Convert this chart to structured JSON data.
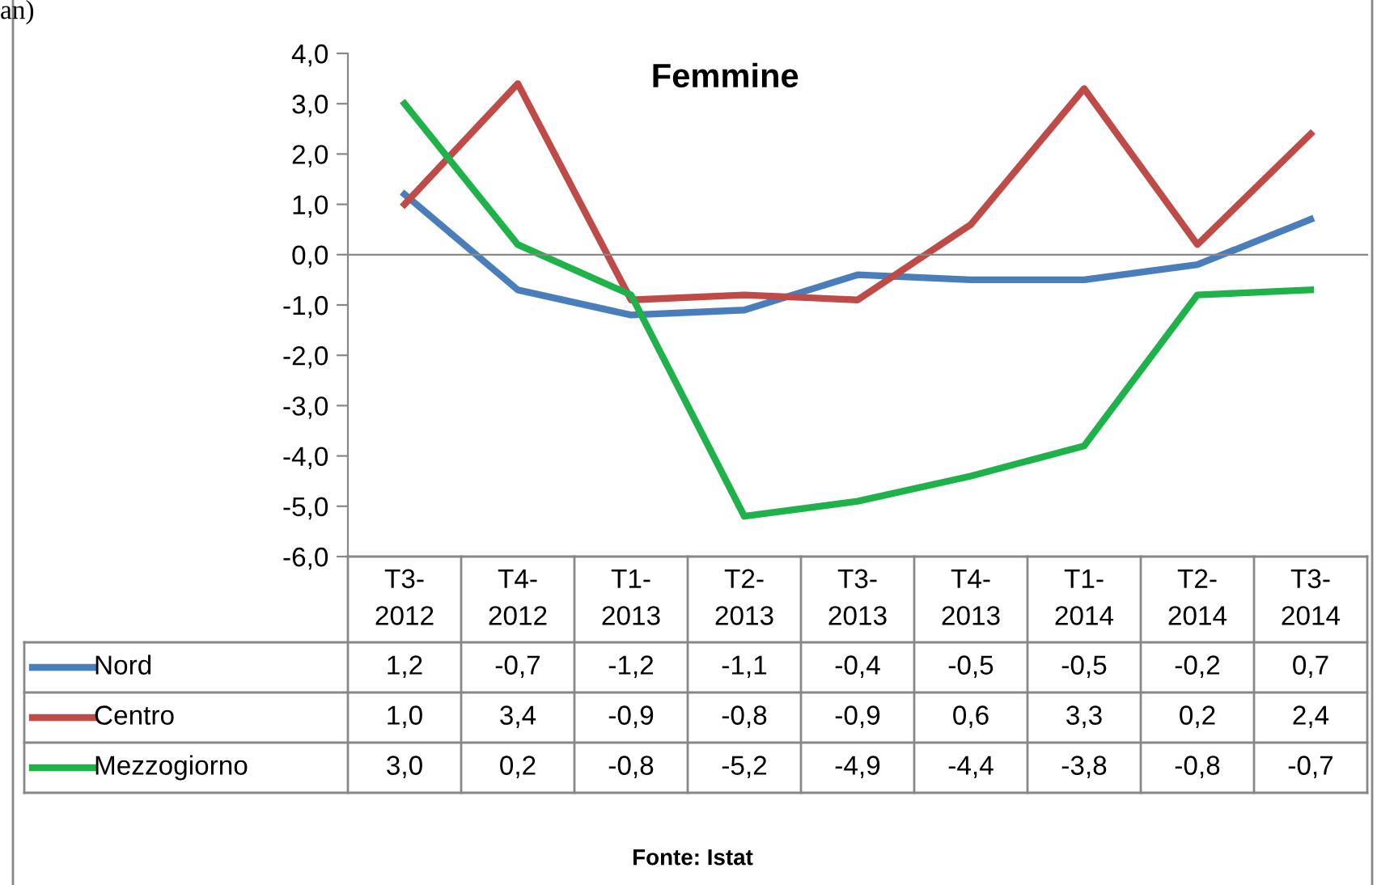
{
  "chart_data": {
    "type": "line",
    "title": "Femmine",
    "categories": [
      "T3-\n2012",
      "T4-\n2012",
      "T1-\n2013",
      "T2-\n2013",
      "T3-\n2013",
      "T4-\n2013",
      "T1-\n2014",
      "T2-\n2014",
      "T3-\n2014"
    ],
    "series": [
      {
        "name": "Nord",
        "color": "#4a7ebb",
        "values": [
          1.2,
          -0.7,
          -1.2,
          -1.1,
          -0.4,
          -0.5,
          -0.5,
          -0.2,
          0.7
        ],
        "value_labels": [
          "1,2",
          "-0,7",
          "-1,2",
          "-1,1",
          "-0,4",
          "-0,5",
          "-0,5",
          "-0,2",
          "0,7"
        ]
      },
      {
        "name": "Centro",
        "color": "#be4b48",
        "values": [
          1.0,
          3.4,
          -0.9,
          -0.8,
          -0.9,
          0.6,
          3.3,
          0.2,
          2.4
        ],
        "value_labels": [
          "1,0",
          "3,4",
          "-0,9",
          "-0,8",
          "-0,9",
          "0,6",
          "3,3",
          "0,2",
          "2,4"
        ]
      },
      {
        "name": "Mezzogiorno",
        "color": "#1fb24a",
        "values": [
          3.0,
          0.2,
          -0.8,
          -5.2,
          -4.9,
          -4.4,
          -3.8,
          -0.8,
          -0.7
        ],
        "value_labels": [
          "3,0",
          "0,2",
          "-0,8",
          "-5,2",
          "-4,9",
          "-4,4",
          "-3,8",
          "-0,8",
          "-0,7"
        ]
      }
    ],
    "ylim": [
      -6,
      4
    ],
    "yticks": [
      {
        "value": -6,
        "label": "-6,0"
      },
      {
        "value": -5,
        "label": "-5,0"
      },
      {
        "value": -4,
        "label": "-4,0"
      },
      {
        "value": -3,
        "label": "-3,0"
      },
      {
        "value": -2,
        "label": "-2,0"
      },
      {
        "value": -1,
        "label": "-1,0"
      },
      {
        "value": 0,
        "label": "0,0"
      },
      {
        "value": 1,
        "label": "1,0"
      },
      {
        "value": 2,
        "label": "2,0"
      },
      {
        "value": 3,
        "label": "3,0"
      },
      {
        "value": 4,
        "label": "4,0"
      }
    ],
    "legend": "bottom",
    "grid": false,
    "marker": "none",
    "line_style": "solid",
    "annotations": [
      "an)",
      "Fonte: Istat"
    ]
  }
}
